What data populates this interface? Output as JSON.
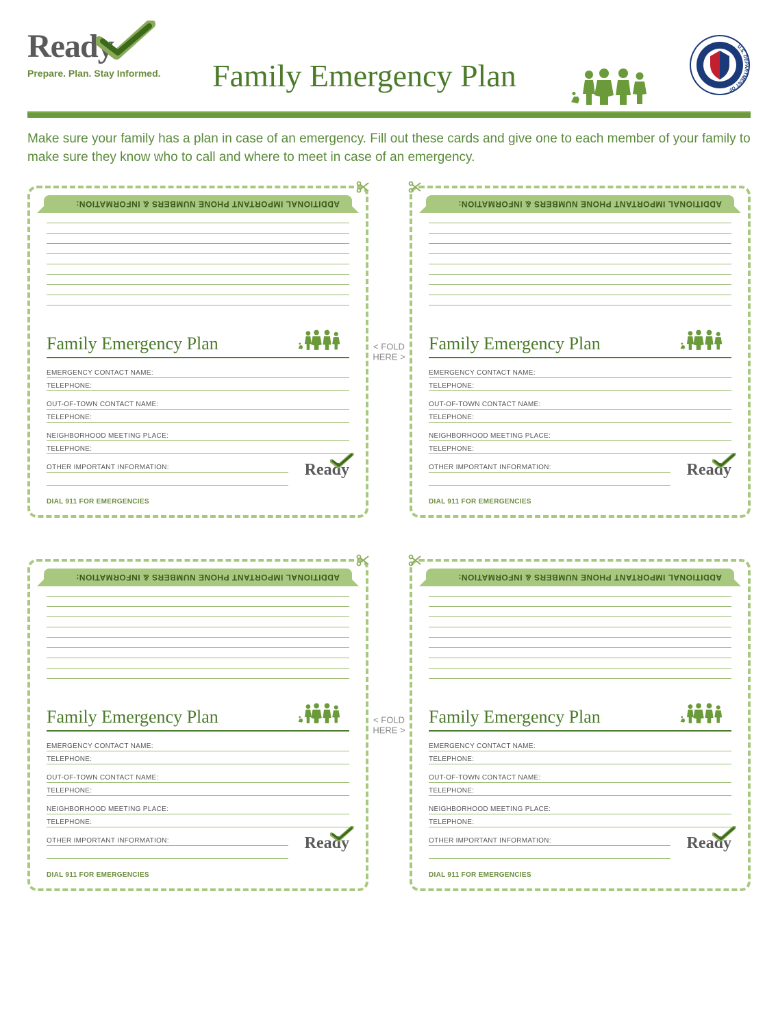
{
  "header": {
    "ready_word": "Ready",
    "tagline": "Prepare. Plan. Stay Informed.",
    "main_title": "Family Emergency Plan",
    "dhs_seal_alt": "U.S. Department of Homeland Security"
  },
  "colors": {
    "green_dark": "#4a7a2a",
    "green_mid": "#6a9a3a",
    "green_light": "#a8c880",
    "green_line": "#99b970",
    "text_green": "#5a8a3a",
    "grey": "#5a5a5a"
  },
  "instructions": "Make sure your family has a plan in case of an emergency. Fill out these cards and give one to each member of your family to make sure they know who to call and where to meet in case of an emergency.",
  "fold_here": "< FOLD\nHERE >",
  "card": {
    "top_heading": "ADDITIONAL IMPORTANT PHONE NUMBERS & INFORMATION:",
    "top_line_count": 9,
    "title": "Family Emergency Plan",
    "fields": {
      "emergency_contact": "EMERGENCY CONTACT NAME:",
      "telephone": "TELEPHONE:",
      "out_of_town": "OUT-OF-TOWN CONTACT NAME:",
      "neighborhood": "NEIGHBORHOOD MEETING PLACE:",
      "other_info": "OTHER IMPORTANT INFORMATION:"
    },
    "dial911": "DIAL 911 FOR EMERGENCIES",
    "ready_small": "Ready"
  }
}
